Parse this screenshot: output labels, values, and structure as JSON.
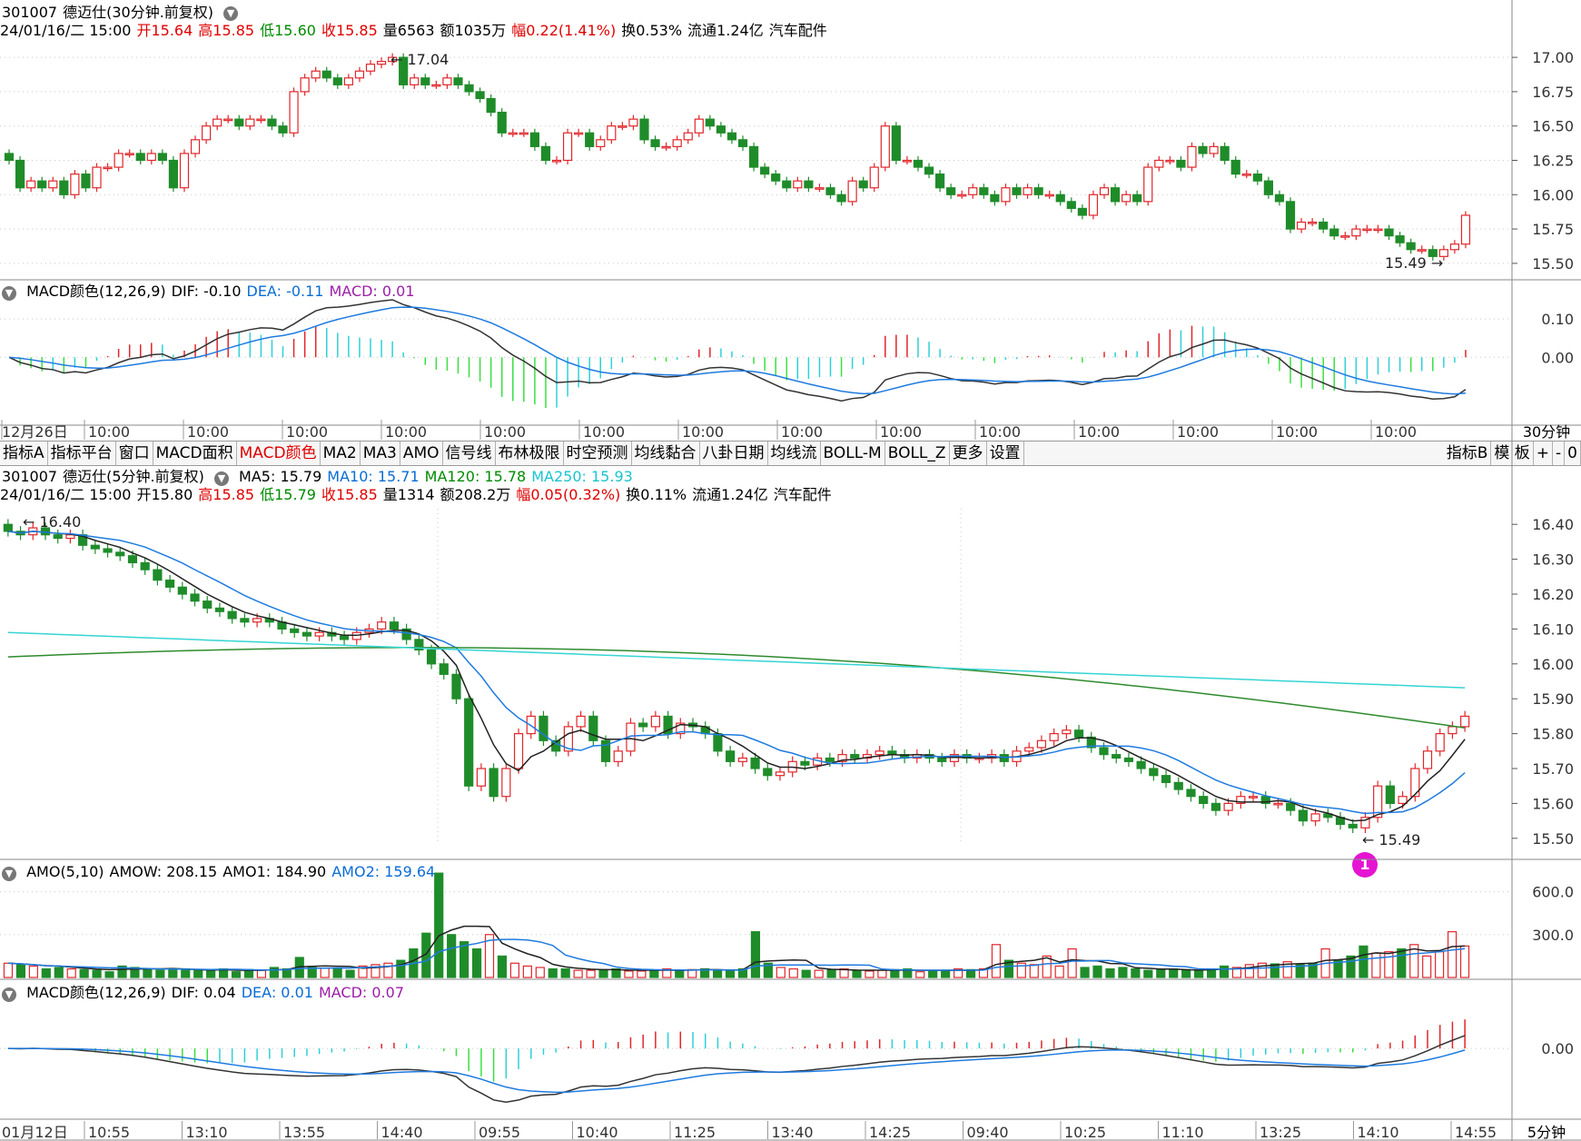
{
  "colors": {
    "up": "#e0262b",
    "down": "#1f8c2a",
    "dif": "#333333",
    "dea": "#1e7be0",
    "ma120": "#2e8b2e",
    "ma250": "#35d4d4",
    "amo2": "#1e7be0",
    "grid": "#c8c8c8"
  },
  "panel30": {
    "header1": {
      "code": "301007",
      "name": "德迈仕",
      "mode": "(30分钟.前复权)"
    },
    "header2": {
      "date": "24/01/16/二 15:00",
      "open_label": "开",
      "open": "15.64",
      "high_label": "高",
      "high": "15.85",
      "low_label": "低",
      "low": "15.60",
      "close_label": "收",
      "close": "15.85",
      "vol_label": "量",
      "vol": "6563",
      "amt_label": "额",
      "amt": "1035万",
      "chg_label": "幅",
      "chg": "0.22(1.41%)",
      "turn_label": "换",
      "turn": "0.53%",
      "float_label": "流通",
      "float": "1.24亿",
      "industry": "汽车配件"
    },
    "hi_label": "17.04",
    "lo_label": "15.49",
    "yticks": [
      "17.00",
      "16.75",
      "16.50",
      "16.25",
      "16.00",
      "15.75",
      "15.50"
    ]
  },
  "macd30": {
    "title": "MACD颜色(12,26,9)",
    "dif": "DIF: -0.10",
    "dea": "DEA: -0.11",
    "macd": "MACD: 0.01",
    "yticks": [
      "0.10",
      "0.00"
    ]
  },
  "axis30": {
    "labels": [
      "12月26日",
      "10:00",
      "10:00",
      "10:00",
      "10:00",
      "10:00",
      "10:00",
      "10:00",
      "10:00",
      "10:00",
      "10:00",
      "10:00",
      "10:00",
      "10:00",
      "10:00"
    ],
    "period": "30分钟"
  },
  "toolbar": {
    "items": [
      "指标A",
      "指标平台",
      "窗口",
      "MACD面积",
      "MACD颜色",
      "MA2",
      "MA3",
      "AMO",
      "信号线",
      "布林极限",
      "时空预测",
      "均线黏合",
      "八卦日期",
      "均线流",
      "BOLL-M",
      "BOLL_Z",
      "更多",
      "设置"
    ],
    "right": [
      "指标B",
      "模 板",
      "+",
      "-",
      "0"
    ]
  },
  "panel5": {
    "header1": {
      "code": "301007",
      "name": "德迈仕",
      "mode": "(5分钟.前复权)",
      "ma5": "MA5: 15.79",
      "ma10": "MA10: 15.71",
      "ma120": "MA120: 15.78",
      "ma250": "MA250: 15.93"
    },
    "header2": {
      "date": "24/01/16/二 15:00",
      "open_label": "开",
      "open": "15.80",
      "high_label": "高",
      "high": "15.85",
      "low_label": "低",
      "low": "15.79",
      "close_label": "收",
      "close": "15.85",
      "vol_label": "量",
      "vol": "1314",
      "amt_label": "额",
      "amt": "208.2万",
      "chg_label": "幅",
      "chg": "0.05(0.32%)",
      "turn_label": "换",
      "turn": "0.11%",
      "float_label": "流通",
      "float": "1.24亿",
      "industry": "汽车配件"
    },
    "hi_label": "16.40",
    "lo_label": "15.49",
    "yticks": [
      "16.40",
      "16.30",
      "16.20",
      "16.10",
      "16.00",
      "15.90",
      "15.80",
      "15.70",
      "15.60",
      "15.50"
    ],
    "badge": "1"
  },
  "amo5": {
    "title": "AMO(5,10)",
    "amow": "AMOW: 208.15",
    "amo1": "AMO1: 184.90",
    "amo2": "AMO2: 159.64",
    "yticks": [
      "600.0",
      "300.0"
    ]
  },
  "macd5": {
    "title": "MACD颜色(12,26,9)",
    "dif": "DIF: 0.04",
    "dea": "DEA: 0.01",
    "macd": "MACD: 0.07",
    "yticks": [
      "0.00"
    ]
  },
  "axis5": {
    "labels": [
      "01月12日",
      "10:55",
      "13:10",
      "13:55",
      "14:40",
      "09:55",
      "10:40",
      "11:25",
      "13:40",
      "14:25",
      "09:40",
      "10:25",
      "11:10",
      "13:25",
      "14:10",
      "14:55"
    ],
    "period": "5分钟"
  },
  "chart_data": [
    {
      "type": "candlestick",
      "title": "301007 德迈仕(30分钟.前复权)",
      "ylim": [
        15.4,
        17.1
      ],
      "annotations": [
        "17.04",
        "15.49"
      ],
      "series": [
        {
          "name": "price",
          "close": [
            16.25,
            16.05,
            16.1,
            16.05,
            16.1,
            16.0,
            16.15,
            16.05,
            16.2,
            16.2,
            16.3,
            16.3,
            16.25,
            16.3,
            16.25,
            16.05,
            16.3,
            16.4,
            16.5,
            16.55,
            16.55,
            16.5,
            16.55,
            16.55,
            16.5,
            16.45,
            16.75,
            16.85,
            16.9,
            16.85,
            16.8,
            16.85,
            16.9,
            16.95,
            16.97,
            17.0,
            16.8,
            16.85,
            16.8,
            16.8,
            16.85,
            16.8,
            16.75,
            16.7,
            16.6,
            16.45,
            16.45,
            16.45,
            16.35,
            16.25,
            16.25,
            16.45,
            16.45,
            16.35,
            16.4,
            16.5,
            16.5,
            16.55,
            16.4,
            16.35,
            16.35,
            16.4,
            16.45,
            16.55,
            16.5,
            16.45,
            16.4,
            16.35,
            16.2,
            16.15,
            16.1,
            16.05,
            16.1,
            16.05,
            16.05,
            16.0,
            15.95,
            16.1,
            16.05,
            16.2,
            16.5,
            16.25,
            16.25,
            16.2,
            16.15,
            16.05,
            16.0,
            16.0,
            16.05,
            16.0,
            15.95,
            16.05,
            16.0,
            16.05,
            16.0,
            16.0,
            15.95,
            15.9,
            15.85,
            16.0,
            16.05,
            15.95,
            16.0,
            15.95,
            16.2,
            16.25,
            16.25,
            16.2,
            16.35,
            16.3,
            16.35,
            16.25,
            16.15,
            16.15,
            16.1,
            16.0,
            15.95,
            15.75,
            15.8,
            15.8,
            15.75,
            15.7,
            15.7,
            15.75,
            15.75,
            15.75,
            15.7,
            15.65,
            15.6,
            15.6,
            15.55,
            15.6,
            15.64,
            15.85
          ]
        }
      ]
    },
    {
      "type": "bar",
      "title": "MACD颜色(12,26,9)",
      "ylim": [
        -0.17,
        0.15
      ],
      "series": [
        {
          "name": "DIF",
          "values": [
            -0.1
          ]
        },
        {
          "name": "DEA",
          "values": [
            -0.11
          ]
        },
        {
          "name": "MACD",
          "values": [
            0.01
          ]
        }
      ]
    },
    {
      "type": "candlestick",
      "title": "301007 德迈仕(5分钟.前复权)",
      "ylim": [
        15.45,
        16.45
      ],
      "annotations": [
        "16.40",
        "15.49"
      ],
      "series": [
        {
          "name": "price",
          "close": [
            16.38,
            16.37,
            16.39,
            16.37,
            16.36,
            16.37,
            16.34,
            16.33,
            16.32,
            16.31,
            16.29,
            16.27,
            16.24,
            16.22,
            16.2,
            16.18,
            16.16,
            16.15,
            16.13,
            16.12,
            16.13,
            16.12,
            16.1,
            16.09,
            16.08,
            16.09,
            16.08,
            16.07,
            16.09,
            16.1,
            16.12,
            16.1,
            16.07,
            16.04,
            16.0,
            15.97,
            15.9,
            15.65,
            15.7,
            15.62,
            15.7,
            15.8,
            15.85,
            15.78,
            15.75,
            15.82,
            15.85,
            15.78,
            15.72,
            15.75,
            15.83,
            15.82,
            15.85,
            15.8,
            15.83,
            15.82,
            15.8,
            15.75,
            15.72,
            15.73,
            15.7,
            15.68,
            15.69,
            15.72,
            15.71,
            15.73,
            15.72,
            15.74,
            15.73,
            15.74,
            15.75,
            15.74,
            15.73,
            15.74,
            15.73,
            15.72,
            15.74,
            15.73,
            15.73,
            15.74,
            15.72,
            15.75,
            15.76,
            15.78,
            15.8,
            15.81,
            15.79,
            15.76,
            15.74,
            15.73,
            15.72,
            15.7,
            15.68,
            15.66,
            15.64,
            15.62,
            15.6,
            15.58,
            15.6,
            15.62,
            15.62,
            15.6,
            15.6,
            15.58,
            15.55,
            15.57,
            15.56,
            15.54,
            15.53,
            15.56,
            15.65,
            15.6,
            15.62,
            15.7,
            15.75,
            15.8,
            15.82,
            15.85
          ]
        },
        {
          "name": "MA5",
          "values": [
            15.79
          ]
        },
        {
          "name": "MA10",
          "values": [
            15.71
          ]
        },
        {
          "name": "MA120",
          "values": [
            15.78
          ]
        },
        {
          "name": "MA250",
          "values": [
            15.93
          ]
        }
      ]
    },
    {
      "type": "bar",
      "title": "AMO(5,10)",
      "ylim": [
        0,
        750
      ],
      "series": [
        {
          "name": "AMO",
          "values": [
            100,
            90,
            80,
            60,
            70,
            60,
            55,
            50,
            40,
            80,
            70,
            60,
            50,
            55,
            60,
            50,
            45,
            60,
            40,
            55,
            50,
            70,
            60,
            140,
            70,
            65,
            60,
            50,
            80,
            90,
            100,
            120,
            200,
            310,
            730,
            300,
            250,
            200,
            300,
            150,
            100,
            80,
            70,
            60,
            60,
            50,
            50,
            55,
            60,
            45,
            45,
            50,
            60,
            50,
            55,
            60,
            50,
            45,
            60,
            320,
            100,
            70,
            60,
            50,
            50,
            55,
            60,
            45,
            45,
            50,
            55,
            60,
            40,
            45,
            50,
            60,
            55,
            60,
            230,
            120,
            100,
            90,
            150,
            80,
            200,
            70,
            80,
            60,
            70,
            60,
            50,
            55,
            60,
            50,
            45,
            60,
            80,
            70,
            90,
            100,
            95,
            110,
            90,
            100,
            200,
            120,
            150,
            220,
            170,
            180,
            200,
            230,
            150,
            180,
            320,
            220
          ]
        },
        {
          "name": "AMOW",
          "values": [
            208.15
          ]
        },
        {
          "name": "AMO1",
          "values": [
            184.9
          ]
        },
        {
          "name": "AMO2",
          "values": [
            159.64
          ]
        }
      ]
    },
    {
      "type": "bar",
      "title": "MACD颜色(12,26,9)",
      "ylim": [
        -0.1,
        0.08
      ],
      "series": [
        {
          "name": "DIF",
          "values": [
            0.04
          ]
        },
        {
          "name": "DEA",
          "values": [
            0.01
          ]
        },
        {
          "name": "MACD",
          "values": [
            0.07
          ]
        }
      ]
    }
  ]
}
